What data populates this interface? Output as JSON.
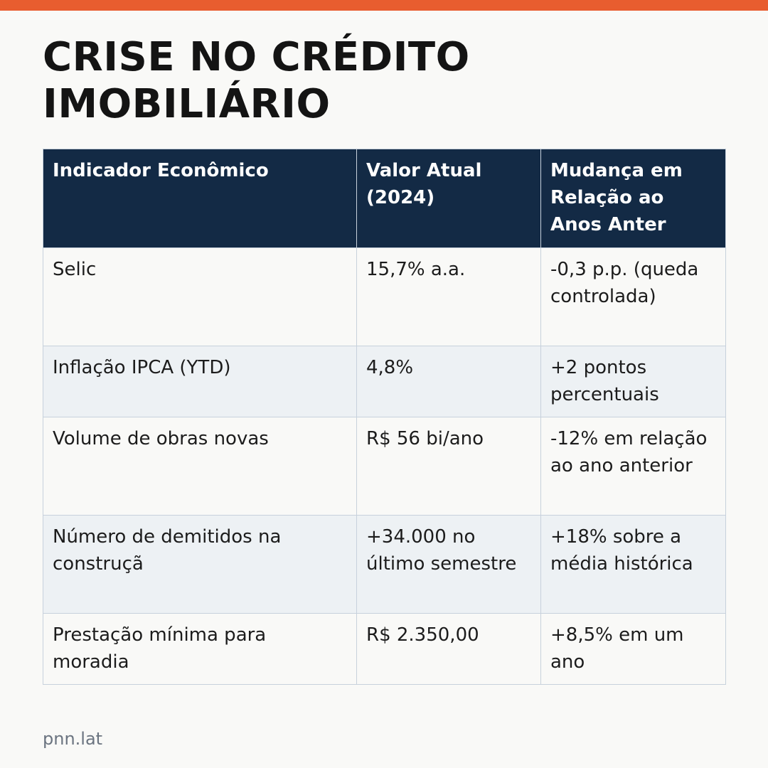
{
  "accent_color": "#e85d2f",
  "header_color": "#132a45",
  "title": "CRISE NO CRÉDITO IMOBILIÁRIO",
  "table": {
    "headers": [
      "Indicador Econômico",
      "Valor Atual (2024)",
      "Mudança em Relação ao Anos Anter"
    ],
    "rows": [
      [
        "Selic",
        "15,7% a.a.",
        "-0,3 p.p. (queda controlada)"
      ],
      [
        "Inflação IPCA (YTD)",
        "4,8%",
        "+2 pontos percentuais"
      ],
      [
        "Volume de obras novas",
        "R$ 56 bi/ano",
        "-12% em relação ao ano anterior"
      ],
      [
        "Número de demitidos na construçã",
        "+34.000 no último semestre",
        "+18% sobre a média histórica"
      ],
      [
        "Prestação mínima para moradia",
        "R$ 2.350,00",
        "+8,5% em um ano"
      ]
    ]
  },
  "footer": {
    "source": "pnn.lat"
  }
}
